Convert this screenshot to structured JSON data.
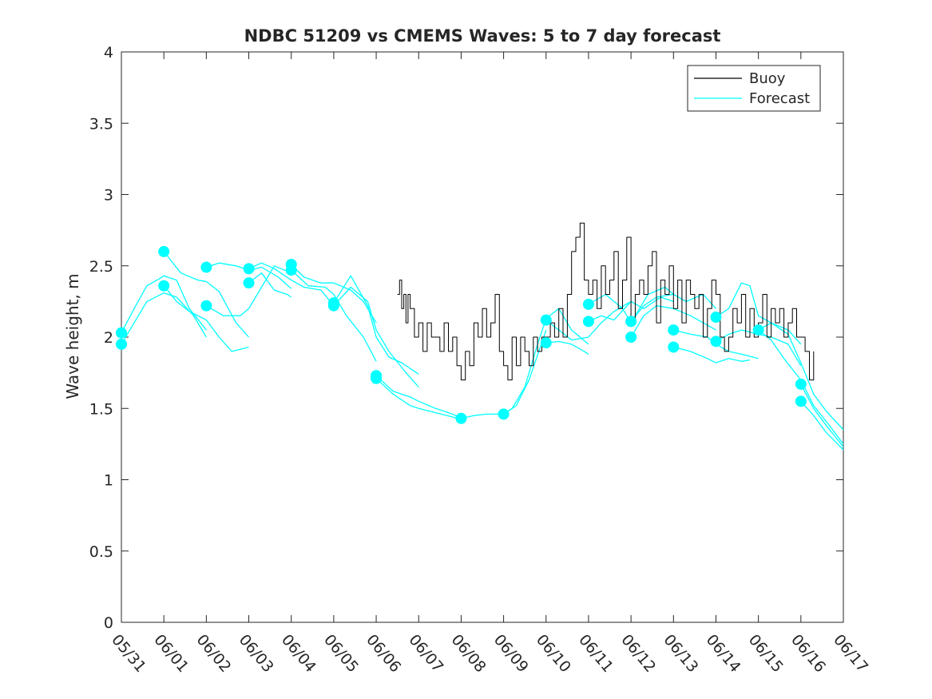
{
  "chart_data": {
    "type": "line",
    "title": "NDBC 51209 vs CMEMS Waves: 5 to 7 day forecast",
    "xlabel": "",
    "ylabel": "Wave height, m",
    "xlim": [
      0,
      17
    ],
    "ylim": [
      0,
      4
    ],
    "x_unit": "days since 05/31",
    "x_ticks": [
      0,
      1,
      2,
      3,
      4,
      5,
      6,
      7,
      8,
      9,
      10,
      11,
      12,
      13,
      14,
      15,
      16,
      17
    ],
    "x_tick_labels": [
      "05/31",
      "06/01",
      "06/02",
      "06/03",
      "06/04",
      "06/05",
      "06/06",
      "06/07",
      "06/08",
      "06/09",
      "06/10",
      "06/11",
      "06/12",
      "06/13",
      "06/14",
      "06/15",
      "06/16",
      "06/17"
    ],
    "y_ticks": [
      0,
      0.5,
      1,
      1.5,
      2,
      2.5,
      3,
      3.5,
      4
    ],
    "y_tick_labels": [
      "0",
      "0.5",
      "1",
      "1.5",
      "2",
      "2.5",
      "3",
      "3.5",
      "4"
    ],
    "grid": false,
    "legend_position": "top-right",
    "legend": [
      {
        "label": "Buoy",
        "color": "#000000"
      },
      {
        "label": "Forecast",
        "color": "#00FFFF"
      }
    ],
    "buoy": {
      "name": "Buoy",
      "color": "#000000",
      "x": [
        6.5,
        6.55,
        6.6,
        6.65,
        6.7,
        6.75,
        6.8,
        6.9,
        7.0,
        7.1,
        7.2,
        7.3,
        7.4,
        7.5,
        7.6,
        7.7,
        7.8,
        7.9,
        8.0,
        8.1,
        8.2,
        8.3,
        8.4,
        8.5,
        8.6,
        8.7,
        8.8,
        8.9,
        9.0,
        9.1,
        9.2,
        9.3,
        9.4,
        9.5,
        9.6,
        9.7,
        9.8,
        9.9,
        10.0,
        10.1,
        10.2,
        10.3,
        10.4,
        10.5,
        10.6,
        10.7,
        10.8,
        10.9,
        11.0,
        11.1,
        11.2,
        11.3,
        11.4,
        11.5,
        11.6,
        11.7,
        11.8,
        11.9,
        12.0,
        12.1,
        12.2,
        12.3,
        12.4,
        12.5,
        12.6,
        12.7,
        12.8,
        12.9,
        13.0,
        13.1,
        13.2,
        13.3,
        13.4,
        13.5,
        13.6,
        13.7,
        13.8,
        13.9,
        14.0,
        14.1,
        14.2,
        14.3,
        14.4,
        14.5,
        14.6,
        14.7,
        14.8,
        14.9,
        15.0,
        15.1,
        15.2,
        15.3,
        15.4,
        15.5,
        15.6,
        15.7,
        15.8,
        15.9,
        16.0,
        16.1,
        16.2,
        16.3
      ],
      "y": [
        2.3,
        2.4,
        2.2,
        2.3,
        2.1,
        2.3,
        2.2,
        2.0,
        2.1,
        1.9,
        2.1,
        2.0,
        2.0,
        1.9,
        2.1,
        1.9,
        2.0,
        1.8,
        1.7,
        1.9,
        1.8,
        2.1,
        2.0,
        2.2,
        2.0,
        2.1,
        2.3,
        1.9,
        1.8,
        1.7,
        2.0,
        1.8,
        2.0,
        1.9,
        1.8,
        2.0,
        1.9,
        2.0,
        2.0,
        2.1,
        2.0,
        2.2,
        2.0,
        2.3,
        2.6,
        2.7,
        2.8,
        2.4,
        2.3,
        2.4,
        2.2,
        2.5,
        2.3,
        2.4,
        2.6,
        2.2,
        2.4,
        2.7,
        2.1,
        2.3,
        2.4,
        2.3,
        2.5,
        2.6,
        2.1,
        2.4,
        2.3,
        2.5,
        2.2,
        2.4,
        2.1,
        2.4,
        2.3,
        2.2,
        2.3,
        2.0,
        2.2,
        2.4,
        2.3,
        2.0,
        1.9,
        2.0,
        2.2,
        2.1,
        2.3,
        2.0,
        2.2,
        2.0,
        2.1,
        2.3,
        2.0,
        2.2,
        2.1,
        2.2,
        2.0,
        2.1,
        2.2,
        2.0,
        2.0,
        1.9,
        1.7,
        1.9
      ]
    },
    "forecast_series": [
      {
        "name": "Forecast",
        "x": [
          0,
          0.3,
          0.6,
          0.9,
          1.0,
          1.3,
          1.6,
          2.0
        ],
        "y": [
          2.03,
          2.2,
          2.36,
          2.41,
          2.43,
          2.4,
          2.2,
          2.05
        ]
      },
      {
        "name": "Forecast",
        "x": [
          0,
          0.3,
          0.6,
          1.0,
          1.3,
          1.7,
          2.0
        ],
        "y": [
          1.95,
          2.1,
          2.25,
          2.31,
          2.28,
          2.15,
          2.0
        ]
      },
      {
        "name": "Forecast",
        "x": [
          1.0,
          1.4,
          1.8,
          2.0,
          2.3,
          2.7,
          3.0
        ],
        "y": [
          2.6,
          2.45,
          2.4,
          2.39,
          2.32,
          2.1,
          2.0
        ]
      },
      {
        "name": "Forecast",
        "x": [
          1.0,
          1.3,
          1.6,
          2.0,
          2.3,
          2.6,
          3.0
        ],
        "y": [
          2.36,
          2.25,
          2.18,
          2.12,
          2.0,
          1.9,
          1.93
        ]
      },
      {
        "name": "Forecast",
        "x": [
          2.0,
          2.3,
          2.7,
          3.0,
          3.3,
          3.7,
          4.0
        ],
        "y": [
          2.49,
          2.52,
          2.5,
          2.47,
          2.49,
          2.42,
          2.34
        ]
      },
      {
        "name": "Forecast",
        "x": [
          2.0,
          2.4,
          2.8,
          3.0,
          3.3,
          3.6,
          4.0
        ],
        "y": [
          2.22,
          2.15,
          2.15,
          2.2,
          2.35,
          2.5,
          2.45
        ]
      },
      {
        "name": "Forecast",
        "x": [
          3.0,
          3.3,
          3.6,
          4.0,
          4.3,
          4.7,
          5.0
        ],
        "y": [
          2.48,
          2.52,
          2.48,
          2.4,
          2.35,
          2.33,
          2.22
        ]
      },
      {
        "name": "Forecast",
        "x": [
          3.0,
          3.3,
          3.6,
          3.9,
          4.0
        ],
        "y": [
          2.38,
          2.45,
          2.33,
          2.3,
          2.28
        ]
      },
      {
        "name": "Forecast",
        "x": [
          4.0,
          4.3,
          4.7,
          5.0,
          5.4,
          5.7,
          6.0
        ],
        "y": [
          2.51,
          2.42,
          2.38,
          2.38,
          2.33,
          2.25,
          2.1
        ]
      },
      {
        "name": "Forecast",
        "x": [
          4.0,
          4.4,
          4.8,
          5.0,
          5.3,
          5.7,
          6.0
        ],
        "y": [
          2.47,
          2.36,
          2.35,
          2.3,
          2.15,
          2.0,
          1.83
        ]
      },
      {
        "name": "Forecast",
        "x": [
          5.0,
          5.4,
          5.8,
          6.0,
          6.3,
          6.6,
          7.0
        ],
        "y": [
          2.24,
          2.43,
          2.22,
          2.0,
          1.86,
          1.82,
          1.74
        ]
      },
      {
        "name": "Forecast",
        "x": [
          5.0,
          5.4,
          5.8,
          6.0,
          6.3,
          6.7,
          7.0
        ],
        "y": [
          2.22,
          2.35,
          2.25,
          2.05,
          1.9,
          1.75,
          1.65
        ]
      },
      {
        "name": "Forecast",
        "x": [
          6.0,
          6.4,
          6.8,
          7.0,
          7.4,
          7.8,
          8.0
        ],
        "y": [
          1.73,
          1.62,
          1.58,
          1.55,
          1.5,
          1.46,
          1.43
        ]
      },
      {
        "name": "Forecast",
        "x": [
          6.0,
          6.4,
          6.8,
          7.0,
          7.4,
          7.8,
          8.0
        ],
        "y": [
          1.71,
          1.6,
          1.52,
          1.5,
          1.47,
          1.44,
          1.42
        ]
      },
      {
        "name": "Forecast",
        "x": [
          8.0,
          8.3,
          8.6,
          9.0,
          9.3,
          9.6,
          10.0
        ],
        "y": [
          1.43,
          1.45,
          1.46,
          1.46,
          1.52,
          1.7,
          2.05
        ]
      },
      {
        "name": "Forecast",
        "x": [
          9.0,
          9.2,
          9.5,
          9.8,
          10.0,
          10.3,
          10.6,
          11.0
        ],
        "y": [
          1.46,
          1.5,
          1.65,
          1.95,
          2.13,
          2.2,
          2.05,
          1.95
        ]
      },
      {
        "name": "Forecast",
        "x": [
          10.0,
          10.3,
          10.6,
          11.0,
          11.3,
          11.6,
          12.0
        ],
        "y": [
          2.12,
          2.05,
          1.98,
          2.0,
          2.1,
          2.18,
          2.25
        ]
      },
      {
        "name": "Forecast",
        "x": [
          10.0,
          10.3,
          10.6,
          10.9,
          11.0
        ],
        "y": [
          1.96,
          1.97,
          1.95,
          1.9,
          1.88
        ]
      },
      {
        "name": "Forecast",
        "x": [
          11.0,
          11.4,
          11.8,
          12.0,
          12.4,
          12.8,
          13.0
        ],
        "y": [
          2.23,
          2.3,
          2.2,
          2.1,
          2.3,
          2.35,
          2.3
        ]
      },
      {
        "name": "Forecast",
        "x": [
          11.0,
          11.3,
          11.6,
          12.0,
          12.3,
          12.7,
          13.0
        ],
        "y": [
          2.11,
          2.15,
          2.12,
          2.25,
          2.2,
          2.28,
          2.25
        ]
      },
      {
        "name": "Forecast",
        "x": [
          12.0,
          12.3,
          12.6,
          13.0,
          13.3,
          13.7,
          14.0
        ],
        "y": [
          2.11,
          2.22,
          2.28,
          2.3,
          2.25,
          2.3,
          2.2
        ]
      },
      {
        "name": "Forecast",
        "x": [
          12.0,
          12.3,
          12.6,
          13.0,
          13.4,
          13.7,
          14.0
        ],
        "y": [
          2.0,
          2.15,
          2.22,
          2.2,
          2.15,
          2.1,
          2.05
        ]
      },
      {
        "name": "Forecast",
        "x": [
          13.0,
          13.4,
          13.8,
          14.0,
          14.3,
          14.6,
          15.0
        ],
        "y": [
          2.05,
          2.02,
          2.0,
          1.95,
          1.9,
          1.88,
          1.85
        ]
      },
      {
        "name": "Forecast",
        "x": [
          13.0,
          13.4,
          13.8,
          14.0,
          14.3,
          14.6,
          14.8
        ],
        "y": [
          1.93,
          1.9,
          1.85,
          1.82,
          1.85,
          1.83,
          1.84
        ]
      },
      {
        "name": "Forecast",
        "x": [
          14.0,
          14.3,
          14.6,
          14.8,
          15.0,
          15.3,
          15.7,
          16.0
        ],
        "y": [
          2.14,
          2.2,
          2.38,
          2.36,
          2.15,
          2.1,
          2.05,
          1.95
        ]
      },
      {
        "name": "Forecast",
        "x": [
          14.0,
          14.3,
          14.6,
          15.0,
          15.3,
          15.7,
          16.0
        ],
        "y": [
          1.97,
          2.02,
          2.05,
          2.02,
          2.0,
          1.95,
          1.8
        ]
      },
      {
        "name": "Forecast",
        "x": [
          15.0,
          15.3,
          15.7,
          16.0,
          16.3,
          16.6,
          17.0
        ],
        "y": [
          2.05,
          2.1,
          2.02,
          1.82,
          1.6,
          1.48,
          1.35
        ]
      },
      {
        "name": "Forecast",
        "x": [
          15.0,
          15.3,
          15.6,
          16.0,
          16.3,
          16.7,
          17.0
        ],
        "y": [
          2.05,
          1.98,
          1.85,
          1.7,
          1.52,
          1.37,
          1.25
        ]
      },
      {
        "name": "Forecast",
        "x": [
          16.0,
          16.3,
          16.6,
          17.0
        ],
        "y": [
          1.67,
          1.5,
          1.38,
          1.23
        ]
      },
      {
        "name": "Forecast",
        "x": [
          16.0,
          16.3,
          16.6,
          17.0
        ],
        "y": [
          1.55,
          1.45,
          1.33,
          1.21
        ]
      }
    ],
    "forecast_color": "#00FFFF",
    "forecast_markers": {
      "x": [
        0,
        0,
        1,
        1,
        2,
        2,
        3,
        3,
        4,
        4,
        5,
        5,
        6,
        6,
        8,
        9,
        10,
        10,
        11,
        11,
        12,
        12,
        13,
        13,
        14,
        14,
        15,
        16,
        16
      ],
      "y": [
        2.03,
        1.95,
        2.6,
        2.36,
        2.49,
        2.22,
        2.48,
        2.38,
        2.51,
        2.47,
        2.24,
        2.22,
        1.73,
        1.71,
        1.43,
        1.46,
        2.12,
        1.96,
        2.23,
        2.11,
        2.11,
        2.0,
        2.05,
        1.93,
        2.14,
        1.97,
        2.05,
        1.67,
        1.55
      ]
    }
  }
}
